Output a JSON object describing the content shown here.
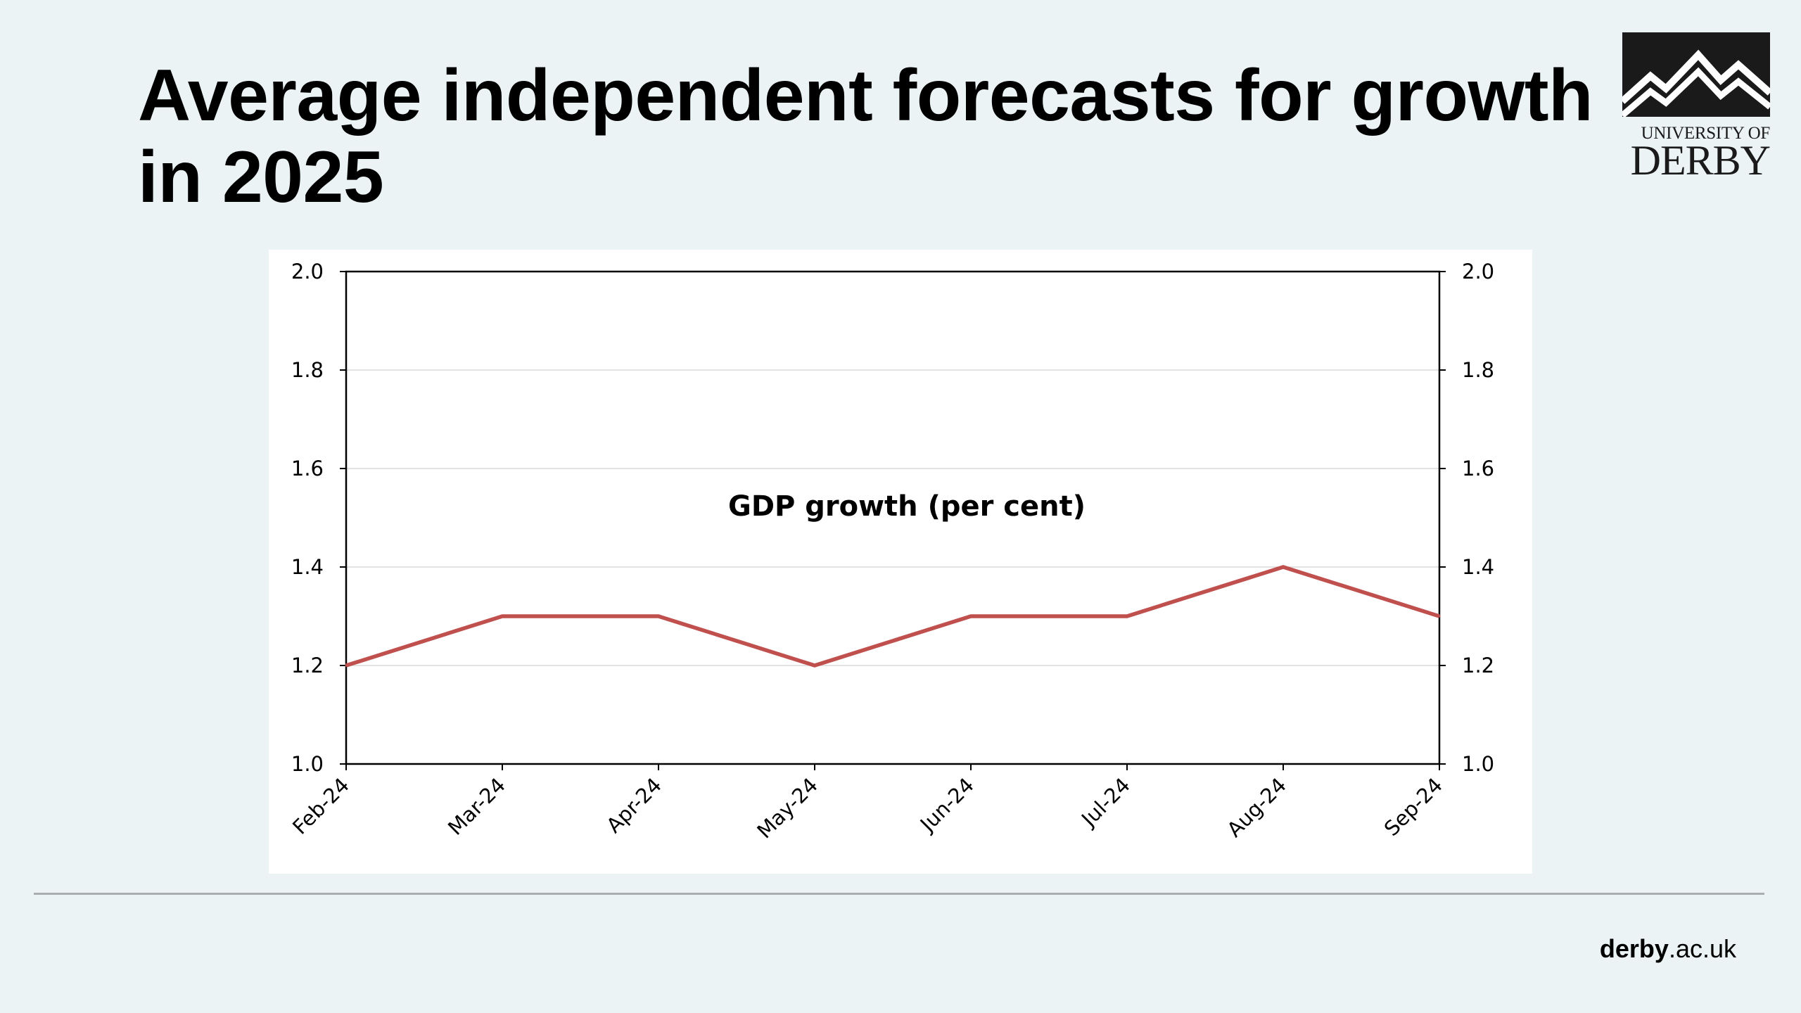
{
  "slide": {
    "title": "Average independent forecasts for growth in 2025",
    "logo_line1": "UNIVERSITY OF",
    "logo_line2": "DERBY",
    "footer_bold": "derby",
    "footer_rest": ".ac.uk"
  },
  "colors": {
    "background": "#ebf3f5",
    "series_line": "#c0504d",
    "gridline": "#d9d9d9",
    "axis": "#000000"
  },
  "chart_data": {
    "type": "line",
    "title": "GDP growth (per cent)",
    "categories": [
      "Feb-24",
      "Mar-24",
      "Apr-24",
      "May-24",
      "Jun-24",
      "Jul-24",
      "Aug-24",
      "Sep-24"
    ],
    "series": [
      {
        "values": [
          1.2,
          1.3,
          1.3,
          1.2,
          1.3,
          1.3,
          1.4,
          1.3
        ]
      }
    ],
    "ylim": [
      1.0,
      2.0
    ],
    "yticks": [
      "1.0",
      "1.2",
      "1.4",
      "1.6",
      "1.8",
      "2.0"
    ],
    "secondary_yticks": [
      "1.0",
      "1.2",
      "1.4",
      "1.6",
      "1.8",
      "2.0"
    ],
    "grid": true,
    "legend": "none"
  }
}
